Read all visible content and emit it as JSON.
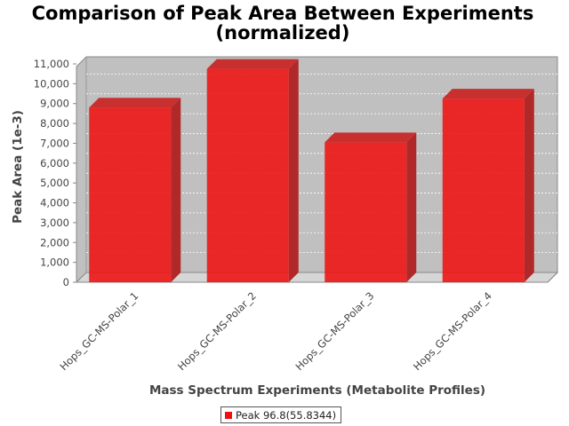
{
  "chart_data": {
    "type": "bar",
    "title": "Comparison of Peak Area Between Experiments",
    "subtitle": "(normalized)",
    "xlabel": "Mass Spectrum Experiments (Metabolite Profiles)",
    "ylabel": "Peak Area (1e-3)",
    "categories": [
      "Hops_GC-MS-Polar_1",
      "Hops_GC-MS-Polar_2",
      "Hops_GC-MS-Polar_3",
      "Hops_GC-MS-Polar_4"
    ],
    "series": [
      {
        "name": "Peak 96.8(55.8344)",
        "values": [
          8800,
          10750,
          7050,
          9250
        ],
        "color": "#ee1111"
      }
    ],
    "ylim": [
      0,
      11000
    ],
    "yticks": [
      "0",
      "1,000",
      "2,000",
      "3,000",
      "4,000",
      "5,000",
      "6,000",
      "7,000",
      "8,000",
      "9,000",
      "10,000",
      "11,000"
    ],
    "grid": true,
    "legend_position": "bottom",
    "style": "3d-bar",
    "plot_background": "#c0c0c0"
  }
}
